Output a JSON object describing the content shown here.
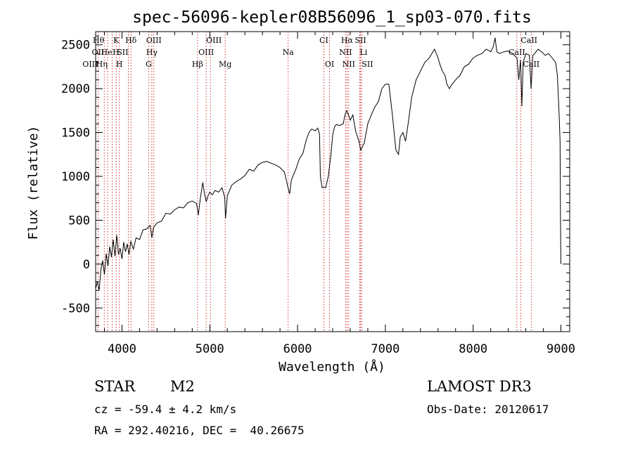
{
  "chart_data": {
    "type": "line",
    "title": "spec-56096-kepler08B56096_1_sp03-070.fits",
    "xlabel": "Wavelength (Å)",
    "ylabel": "Flux (relative)",
    "xlim": [
      3700,
      9100
    ],
    "ylim": [
      -770,
      2650
    ],
    "x_ticks": [
      4000,
      5000,
      6000,
      7000,
      8000,
      9000
    ],
    "y_ticks": [
      -500,
      0,
      500,
      1000,
      1500,
      2000,
      2500
    ],
    "line_color": "#000000",
    "marker_color": "#cc0000",
    "series": [
      {
        "name": "flux",
        "points": [
          [
            3700,
            -280
          ],
          [
            3720,
            -200
          ],
          [
            3740,
            -300
          ],
          [
            3760,
            -60
          ],
          [
            3780,
            40
          ],
          [
            3800,
            -120
          ],
          [
            3820,
            120
          ],
          [
            3840,
            -20
          ],
          [
            3860,
            200
          ],
          [
            3880,
            80
          ],
          [
            3900,
            280
          ],
          [
            3920,
            90
          ],
          [
            3940,
            330
          ],
          [
            3960,
            110
          ],
          [
            3980,
            180
          ],
          [
            4000,
            60
          ],
          [
            4020,
            250
          ],
          [
            4040,
            140
          ],
          [
            4060,
            230
          ],
          [
            4080,
            110
          ],
          [
            4100,
            260
          ],
          [
            4130,
            170
          ],
          [
            4160,
            300
          ],
          [
            4200,
            280
          ],
          [
            4240,
            390
          ],
          [
            4280,
            400
          ],
          [
            4320,
            440
          ],
          [
            4340,
            300
          ],
          [
            4360,
            420
          ],
          [
            4400,
            470
          ],
          [
            4450,
            490
          ],
          [
            4500,
            580
          ],
          [
            4550,
            570
          ],
          [
            4600,
            620
          ],
          [
            4650,
            650
          ],
          [
            4700,
            640
          ],
          [
            4750,
            700
          ],
          [
            4800,
            720
          ],
          [
            4850,
            690
          ],
          [
            4870,
            560
          ],
          [
            4890,
            730
          ],
          [
            4920,
            930
          ],
          [
            4940,
            800
          ],
          [
            4960,
            710
          ],
          [
            4980,
            780
          ],
          [
            5000,
            820
          ],
          [
            5030,
            790
          ],
          [
            5060,
            840
          ],
          [
            5100,
            820
          ],
          [
            5140,
            870
          ],
          [
            5170,
            760
          ],
          [
            5180,
            520
          ],
          [
            5200,
            780
          ],
          [
            5250,
            900
          ],
          [
            5300,
            940
          ],
          [
            5350,
            970
          ],
          [
            5400,
            1010
          ],
          [
            5450,
            1080
          ],
          [
            5500,
            1060
          ],
          [
            5550,
            1130
          ],
          [
            5600,
            1160
          ],
          [
            5650,
            1170
          ],
          [
            5700,
            1150
          ],
          [
            5750,
            1130
          ],
          [
            5800,
            1100
          ],
          [
            5850,
            1050
          ],
          [
            5890,
            880
          ],
          [
            5910,
            800
          ],
          [
            5930,
            960
          ],
          [
            5980,
            1080
          ],
          [
            6020,
            1200
          ],
          [
            6060,
            1260
          ],
          [
            6100,
            1420
          ],
          [
            6130,
            1500
          ],
          [
            6160,
            1540
          ],
          [
            6200,
            1520
          ],
          [
            6230,
            1550
          ],
          [
            6250,
            1480
          ],
          [
            6260,
            1000
          ],
          [
            6280,
            870
          ],
          [
            6300,
            880
          ],
          [
            6320,
            870
          ],
          [
            6350,
            1000
          ],
          [
            6380,
            1250
          ],
          [
            6400,
            1470
          ],
          [
            6420,
            1560
          ],
          [
            6440,
            1590
          ],
          [
            6480,
            1580
          ],
          [
            6520,
            1600
          ],
          [
            6540,
            1700
          ],
          [
            6560,
            1750
          ],
          [
            6580,
            1700
          ],
          [
            6600,
            1640
          ],
          [
            6630,
            1700
          ],
          [
            6660,
            1520
          ],
          [
            6700,
            1400
          ],
          [
            6720,
            1300
          ],
          [
            6760,
            1380
          ],
          [
            6800,
            1600
          ],
          [
            6840,
            1700
          ],
          [
            6880,
            1790
          ],
          [
            6920,
            1850
          ],
          [
            6960,
            2000
          ],
          [
            7000,
            2050
          ],
          [
            7040,
            2050
          ],
          [
            7080,
            1700
          ],
          [
            7100,
            1500
          ],
          [
            7120,
            1300
          ],
          [
            7150,
            1250
          ],
          [
            7170,
            1450
          ],
          [
            7200,
            1500
          ],
          [
            7230,
            1400
          ],
          [
            7260,
            1600
          ],
          [
            7300,
            1900
          ],
          [
            7350,
            2100
          ],
          [
            7400,
            2200
          ],
          [
            7450,
            2300
          ],
          [
            7500,
            2350
          ],
          [
            7560,
            2450
          ],
          [
            7600,
            2350
          ],
          [
            7620,
            2280
          ],
          [
            7650,
            2200
          ],
          [
            7680,
            2150
          ],
          [
            7700,
            2050
          ],
          [
            7730,
            2000
          ],
          [
            7760,
            2050
          ],
          [
            7800,
            2100
          ],
          [
            7850,
            2150
          ],
          [
            7900,
            2250
          ],
          [
            7950,
            2280
          ],
          [
            8000,
            2350
          ],
          [
            8050,
            2380
          ],
          [
            8100,
            2400
          ],
          [
            8150,
            2450
          ],
          [
            8200,
            2420
          ],
          [
            8230,
            2480
          ],
          [
            8250,
            2580
          ],
          [
            8270,
            2420
          ],
          [
            8300,
            2400
          ],
          [
            8350,
            2420
          ],
          [
            8400,
            2430
          ],
          [
            8450,
            2400
          ],
          [
            8480,
            2370
          ],
          [
            8500,
            2350
          ],
          [
            8520,
            2100
          ],
          [
            8540,
            2330
          ],
          [
            8555,
            1800
          ],
          [
            8570,
            2300
          ],
          [
            8600,
            2400
          ],
          [
            8640,
            2380
          ],
          [
            8660,
            2000
          ],
          [
            8680,
            2380
          ],
          [
            8700,
            2400
          ],
          [
            8740,
            2450
          ],
          [
            8780,
            2420
          ],
          [
            8820,
            2380
          ],
          [
            8860,
            2400
          ],
          [
            8900,
            2350
          ],
          [
            8940,
            2300
          ],
          [
            8960,
            2150
          ],
          [
            8980,
            1700
          ],
          [
            8990,
            1400
          ],
          [
            8995,
            500
          ],
          [
            9000,
            0
          ]
        ]
      }
    ],
    "line_markers": [
      {
        "label": "Hθ",
        "x": 3798,
        "row": 0,
        "align": "end"
      },
      {
        "label": "K",
        "x": 3934,
        "row": 0,
        "align": "middle"
      },
      {
        "label": "Hδ",
        "x": 4102,
        "row": 0,
        "align": "middle"
      },
      {
        "label": "OIII",
        "x": 4363,
        "row": 0,
        "align": "middle"
      },
      {
        "label": "OIII",
        "x": 4959,
        "row": 0,
        "align": "start"
      },
      {
        "label": "CI",
        "x": 6300,
        "row": 0,
        "align": "middle"
      },
      {
        "label": "Hα",
        "x": 6563,
        "row": 0,
        "align": "middle"
      },
      {
        "label": "SII",
        "x": 6717,
        "row": 0,
        "align": "middle"
      },
      {
        "label": "CaII",
        "x": 8542,
        "row": 0,
        "align": "start"
      },
      {
        "label": "OII",
        "x": 3727,
        "row": 1,
        "align": "middle"
      },
      {
        "label": "He",
        "x": 3889,
        "row": 1,
        "align": "end"
      },
      {
        "label": "H",
        "x": 3970,
        "row": 1,
        "align": "end"
      },
      {
        "label": "SII",
        "x": 4072,
        "row": 1,
        "align": "end"
      },
      {
        "label": "Hγ",
        "x": 4340,
        "row": 1,
        "align": "middle"
      },
      {
        "label": "OIII",
        "x": 4959,
        "row": 1,
        "align": "middle"
      },
      {
        "label": "Na",
        "x": 5893,
        "row": 1,
        "align": "middle"
      },
      {
        "label": "NII",
        "x": 6548,
        "row": 1,
        "align": "middle"
      },
      {
        "label": "Li",
        "x": 6708,
        "row": 1,
        "align": "start"
      },
      {
        "label": "CaII",
        "x": 8498,
        "row": 1,
        "align": "middle"
      },
      {
        "label": "OIII",
        "x": 3727,
        "row": 2,
        "align": "end"
      },
      {
        "label": "Hη",
        "x": 3835,
        "row": 2,
        "align": "end"
      },
      {
        "label": "H",
        "x": 3970,
        "row": 2,
        "align": "middle"
      },
      {
        "label": "G",
        "x": 4304,
        "row": 2,
        "align": "middle"
      },
      {
        "label": "Hβ",
        "x": 4861,
        "row": 2,
        "align": "middle"
      },
      {
        "label": "Mg",
        "x": 5175,
        "row": 2,
        "align": "middle"
      },
      {
        "label": "OI",
        "x": 6364,
        "row": 2,
        "align": "middle"
      },
      {
        "label": "NII",
        "x": 6583,
        "row": 2,
        "align": "middle"
      },
      {
        "label": "SII",
        "x": 6731,
        "row": 2,
        "align": "start"
      },
      {
        "label": "CaII",
        "x": 8662,
        "row": 2,
        "align": "middle"
      }
    ],
    "marker_positions": [
      3727,
      3798,
      3835,
      3889,
      3934,
      3970,
      4072,
      4102,
      4304,
      4340,
      4363,
      4861,
      4959,
      5007,
      5175,
      5893,
      6300,
      6364,
      6548,
      6563,
      6583,
      6708,
      6717,
      6731,
      8498,
      8542,
      8662
    ]
  },
  "info": {
    "object_class": "STAR",
    "subclass": "M2",
    "survey": "LAMOST DR3",
    "velocity": "cz = -59.4 ± 4.2 km/s",
    "obs_date": "Obs-Date: 20120617",
    "coordinates": "RA = 292.40216, DEC =  40.26675"
  }
}
